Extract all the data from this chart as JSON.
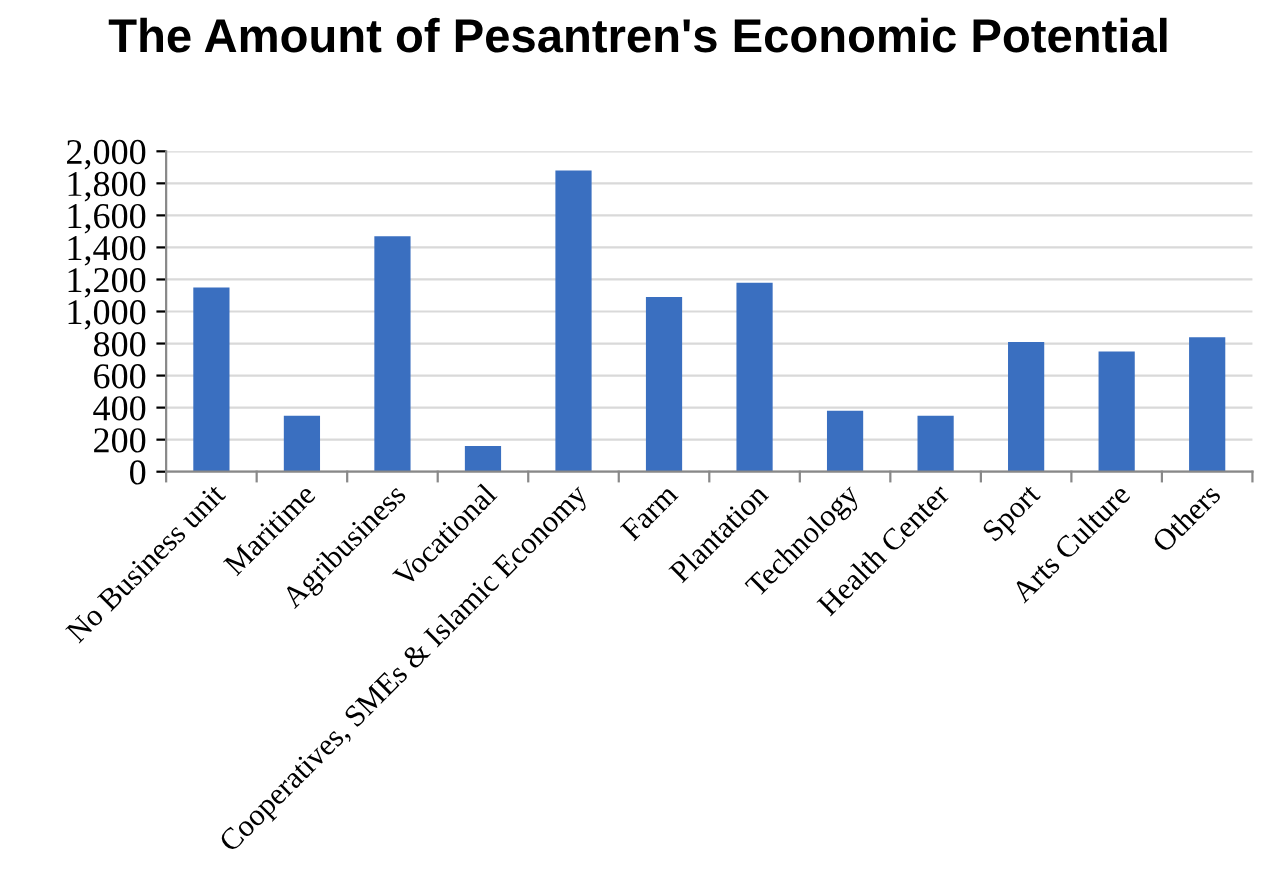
{
  "chart_data": {
    "type": "bar",
    "title": "The Amount of Pesantren's Economic Potential",
    "categories": [
      "No Business unit",
      "Maritime",
      "Agribusiness",
      "Vocational",
      "Cooperatives, SMEs & Islamic Economy",
      "Farm",
      "Plantation",
      "Technology",
      "Health Center",
      "Sport",
      "Arts Culture",
      "Others"
    ],
    "values": [
      1150,
      350,
      1470,
      160,
      1880,
      1090,
      1180,
      380,
      350,
      810,
      750,
      840
    ],
    "color": "#3a6fc0",
    "ylim": [
      0,
      2000
    ],
    "yticks": [
      {
        "value": 0,
        "label": "0"
      },
      {
        "value": 200,
        "label": "200"
      },
      {
        "value": 400,
        "label": "400"
      },
      {
        "value": 600,
        "label": "600"
      },
      {
        "value": 800,
        "label": "800"
      },
      {
        "value": 1000,
        "label": "1,000"
      },
      {
        "value": 1200,
        "label": "1,200"
      },
      {
        "value": 1400,
        "label": "1,400"
      },
      {
        "value": 1600,
        "label": "1,600"
      },
      {
        "value": 1800,
        "label": "1,800"
      },
      {
        "value": 2000,
        "label": "2,000"
      }
    ],
    "grid": "y"
  }
}
